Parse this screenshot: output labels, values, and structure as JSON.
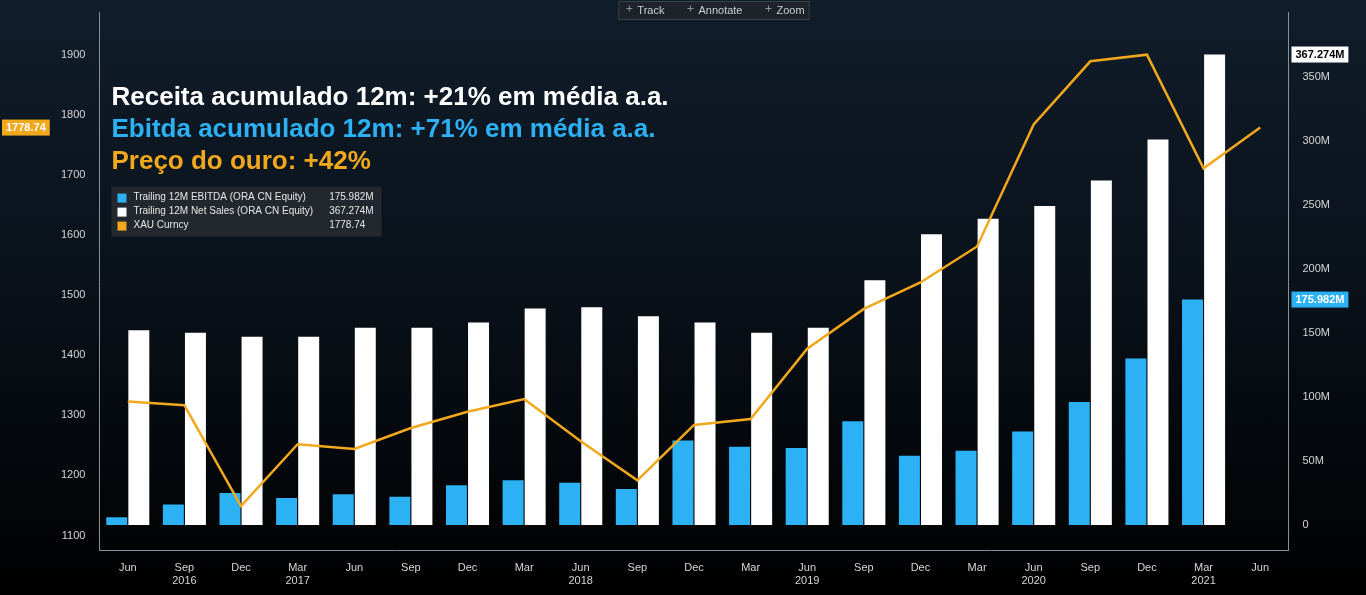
{
  "chart_data": {
    "type": "bar",
    "toolbar": [
      "Track",
      "Annotate",
      "Zoom"
    ],
    "annotations": [
      {
        "text": "Receita acumulado 12m: +21% em média a.a.",
        "color": "#ffffff"
      },
      {
        "text": "Ebitda acumulado 12m: +71% em média a.a.",
        "color": "#2db1f5"
      },
      {
        "text": "Preço do ouro: +42%",
        "color": "#f2a81d"
      }
    ],
    "categories": [
      "Jun",
      [
        "Sep",
        "2016"
      ],
      "Dec",
      [
        "Mar",
        "2017"
      ],
      "Jun",
      "Sep",
      "Dec",
      "Mar",
      [
        "Jun",
        "2018"
      ],
      "Sep",
      "Dec",
      "Mar",
      [
        "Jun",
        "2019"
      ],
      "Sep",
      "Dec",
      "Mar",
      [
        "Jun",
        "2020"
      ],
      "Sep",
      "Dec",
      [
        "Mar",
        "2021"
      ],
      "Jun"
    ],
    "series": [
      {
        "name": "Trailing 12M EBITDA (ORA CN Equity)",
        "color": "#2db1f5",
        "axis": "y2",
        "values": [
          6,
          16,
          25,
          21,
          24,
          22,
          31,
          35,
          33,
          28,
          66,
          61,
          60,
          81,
          54,
          58,
          73,
          96,
          130,
          175.982,
          null
        ],
        "value_labels": [
          null,
          null,
          null,
          null,
          null,
          null,
          null,
          null,
          null,
          null,
          null,
          null,
          null,
          null,
          null,
          null,
          null,
          null,
          null,
          "175.982M",
          null
        ]
      },
      {
        "name": "Trailing 12M Net Sales (ORA CN Equity)",
        "color": "#ffffff",
        "axis": "y2",
        "values": [
          152,
          150,
          147,
          147,
          154,
          154,
          158,
          169,
          170,
          163,
          158,
          150,
          154,
          191,
          227,
          239,
          249,
          269,
          301,
          367.274,
          null
        ],
        "value_labels": [
          null,
          null,
          null,
          null,
          null,
          null,
          null,
          null,
          null,
          null,
          null,
          null,
          null,
          null,
          null,
          null,
          null,
          null,
          null,
          "367.274M",
          null
        ]
      },
      {
        "name": "XAU Curncy",
        "type": "line",
        "color": "#f2a81d",
        "axis": "y",
        "values": [
          1323,
          1317,
          1149,
          1252,
          1244,
          1279,
          1306,
          1327,
          1257,
          1192,
          1284,
          1294,
          1411,
          1477,
          1521,
          1581,
          1784,
          1889,
          1900,
          1711,
          1778.74
        ],
        "value_labels": [
          null,
          null,
          null,
          null,
          null,
          null,
          null,
          null,
          null,
          null,
          null,
          null,
          null,
          null,
          null,
          null,
          null,
          null,
          null,
          null,
          "1778.74"
        ]
      }
    ],
    "ylim": [
      1075,
      1970
    ],
    "yticks": [
      1100,
      1200,
      1300,
      1400,
      1500,
      1600,
      1700,
      1800,
      1900
    ],
    "y2lim": [
      -20,
      400
    ],
    "y2ticks": [
      0,
      {
        "value": 50,
        "label": "50M"
      },
      {
        "value": 100,
        "label": "100M"
      },
      {
        "value": 150,
        "label": "150M"
      },
      {
        "value": 200,
        "label": "200M"
      },
      {
        "value": 250,
        "label": "250M"
      },
      {
        "value": 300,
        "label": "300M"
      },
      {
        "value": 350,
        "label": "350M"
      }
    ],
    "grid": false,
    "legend": "top left"
  }
}
